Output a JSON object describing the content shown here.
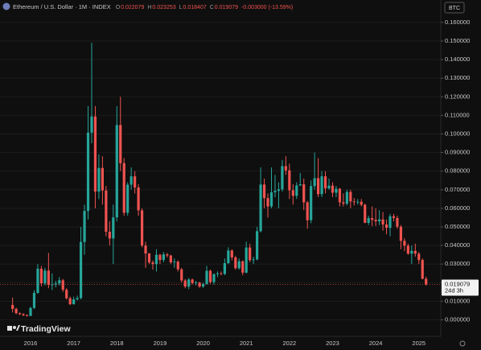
{
  "chart_data": {
    "type": "candlestick",
    "symbol": "Ethereum / U.S. Dollar · 1M · INDEX",
    "ohlc_header": [
      {
        "label": "O",
        "value": "0.022079"
      },
      {
        "label": "H",
        "value": "0.023253"
      },
      {
        "label": "L",
        "value": "0.018407"
      },
      {
        "label": "C",
        "value": "0.019079"
      }
    ],
    "change": "-0.003000 (-13.59%)",
    "currency_button": "BTC",
    "watermark": "TradingView",
    "last_price_label": "0.019079",
    "countdown": "24d 3h",
    "up_color": "#26a69a",
    "down_color": "#ef5350",
    "categories": [
      null,
      null,
      null,
      null,
      null,
      "2016",
      null,
      null,
      null,
      null,
      null,
      null,
      null,
      null,
      null,
      null,
      null,
      "2017",
      null,
      null,
      null,
      null,
      null,
      null,
      null,
      null,
      null,
      null,
      null,
      "2018",
      null,
      null,
      null,
      null,
      null,
      null,
      null,
      null,
      null,
      null,
      null,
      "2019",
      null,
      null,
      null,
      null,
      null,
      null,
      null,
      null,
      null,
      null,
      null,
      "2020",
      null,
      null,
      null,
      null,
      null,
      null,
      null,
      null,
      null,
      null,
      null,
      "2021",
      null,
      null,
      null,
      null,
      null,
      null,
      null,
      null,
      null,
      null,
      null,
      "2022",
      null,
      null,
      null,
      null,
      null,
      null,
      null,
      null,
      null,
      null,
      null,
      "2023",
      null,
      null,
      null,
      null,
      null,
      null,
      null,
      null,
      null,
      null,
      null,
      "2024",
      null,
      null,
      null,
      null,
      null,
      null,
      null,
      null,
      null,
      null,
      null,
      "2025",
      null,
      null
    ],
    "open": [
      0.008,
      0.0059,
      0.0036,
      0.0031,
      0.0025,
      0.0021,
      0.0064,
      0.0145,
      0.0275,
      0.0196,
      0.0265,
      0.0188,
      0.019,
      0.0196,
      0.0213,
      0.0162,
      0.0116,
      0.0084,
      0.011,
      0.0117,
      0.0419,
      0.0586,
      0.1007,
      0.1094,
      0.069,
      0.0817,
      0.0696,
      0.0474,
      0.0438,
      0.0551,
      0.1048,
      0.0843,
      0.0576,
      0.0727,
      0.0772,
      0.0712,
      0.0589,
      0.04,
      0.0357,
      0.0309,
      0.03,
      0.035,
      0.0322,
      0.0352,
      0.0346,
      0.0309,
      0.0313,
      0.0272,
      0.0212,
      0.0179,
      0.0217,
      0.0198,
      0.02,
      0.0179,
      0.0193,
      0.0264,
      0.0203,
      0.0246,
      0.025,
      0.0247,
      0.0305,
      0.0373,
      0.0336,
      0.0278,
      0.0315,
      0.0254,
      0.0389,
      0.0321,
      0.0325,
      0.0477,
      0.0728,
      0.0655,
      0.061,
      0.0686,
      0.0694,
      0.0702,
      0.0827,
      0.0804,
      0.0697,
      0.0667,
      0.0723,
      0.0729,
      0.0632,
      0.0536,
      0.072,
      0.0762,
      0.0676,
      0.0772,
      0.0707,
      0.0722,
      0.0684,
      0.0705,
      0.0632,
      0.0625,
      0.0688,
      0.0637,
      0.0633,
      0.0635,
      0.0619,
      0.0522,
      0.0547,
      0.0538,
      0.053,
      0.054,
      0.0513,
      0.0495,
      0.0557,
      0.0548,
      0.0501,
      0.0425,
      0.0399,
      0.0356,
      0.0371,
      0.0356,
      0.0322,
      0.022079
    ],
    "high": [
      0.012,
      0.0065,
      0.004,
      0.0036,
      0.003,
      0.007,
      0.016,
      0.03,
      0.029,
      0.028,
      0.036,
      0.025,
      0.021,
      0.023,
      0.022,
      0.017,
      0.0125,
      0.0125,
      0.013,
      0.05,
      0.062,
      0.115,
      0.149,
      0.115,
      0.089,
      0.088,
      0.072,
      0.053,
      0.062,
      0.115,
      0.12,
      0.087,
      0.074,
      0.082,
      0.08,
      0.073,
      0.06,
      0.042,
      0.036,
      0.032,
      0.038,
      0.0355,
      0.0365,
      0.036,
      0.035,
      0.033,
      0.032,
      0.028,
      0.022,
      0.0225,
      0.0222,
      0.021,
      0.0205,
      0.02,
      0.029,
      0.027,
      0.025,
      0.026,
      0.026,
      0.033,
      0.039,
      0.038,
      0.0345,
      0.033,
      0.032,
      0.042,
      0.041,
      0.034,
      0.05,
      0.082,
      0.076,
      0.068,
      0.082,
      0.078,
      0.074,
      0.086,
      0.088,
      0.084,
      0.073,
      0.074,
      0.079,
      0.076,
      0.064,
      0.075,
      0.09,
      0.087,
      0.08,
      0.08,
      0.076,
      0.074,
      0.072,
      0.071,
      0.068,
      0.07,
      0.07,
      0.0655,
      0.065,
      0.065,
      0.0625,
      0.056,
      0.061,
      0.06,
      0.059,
      0.058,
      0.054,
      0.057,
      0.057,
      0.056,
      0.051,
      0.044,
      0.041,
      0.04,
      0.041,
      0.0365,
      0.033,
      0.023253
    ],
    "low": [
      0.004,
      0.003,
      0.0025,
      0.002,
      0.0018,
      0.002,
      0.0058,
      0.014,
      0.018,
      0.0185,
      0.017,
      0.016,
      0.0175,
      0.0185,
      0.015,
      0.011,
      0.008,
      0.0082,
      0.0105,
      0.011,
      0.035,
      0.054,
      0.095,
      0.06,
      0.065,
      0.062,
      0.045,
      0.04,
      0.03,
      0.053,
      0.08,
      0.056,
      0.056,
      0.07,
      0.068,
      0.056,
      0.039,
      0.028,
      0.03,
      0.027,
      0.026,
      0.03,
      0.031,
      0.0335,
      0.03,
      0.028,
      0.026,
      0.02,
      0.017,
      0.0165,
      0.019,
      0.0185,
      0.0172,
      0.0172,
      0.019,
      0.0195,
      0.019,
      0.023,
      0.024,
      0.024,
      0.03,
      0.032,
      0.027,
      0.027,
      0.024,
      0.025,
      0.031,
      0.03,
      0.032,
      0.047,
      0.06,
      0.055,
      0.06,
      0.066,
      0.06,
      0.069,
      0.078,
      0.065,
      0.062,
      0.065,
      0.072,
      0.059,
      0.049,
      0.052,
      0.07,
      0.066,
      0.066,
      0.068,
      0.07,
      0.066,
      0.066,
      0.061,
      0.061,
      0.0615,
      0.06,
      0.0615,
      0.062,
      0.061,
      0.052,
      0.051,
      0.0505,
      0.0505,
      0.051,
      0.048,
      0.046,
      0.045,
      0.053,
      0.049,
      0.038,
      0.037,
      0.035,
      0.03,
      0.034,
      0.03,
      0.0218,
      0.018407
    ],
    "close": [
      0.0059,
      0.0036,
      0.0031,
      0.0025,
      0.0021,
      0.0064,
      0.0145,
      0.0275,
      0.0196,
      0.0265,
      0.0188,
      0.019,
      0.0196,
      0.0213,
      0.0162,
      0.0116,
      0.0084,
      0.011,
      0.0117,
      0.0419,
      0.0586,
      0.1007,
      0.1094,
      0.069,
      0.0817,
      0.0696,
      0.0474,
      0.0438,
      0.0551,
      0.1048,
      0.0843,
      0.0576,
      0.0727,
      0.0772,
      0.0712,
      0.0589,
      0.04,
      0.0357,
      0.0309,
      0.03,
      0.035,
      0.0322,
      0.0352,
      0.0346,
      0.0309,
      0.0313,
      0.0272,
      0.0212,
      0.0179,
      0.0217,
      0.0198,
      0.02,
      0.0179,
      0.0193,
      0.0264,
      0.0203,
      0.0246,
      0.025,
      0.0247,
      0.0305,
      0.0373,
      0.0336,
      0.0278,
      0.0315,
      0.0254,
      0.0389,
      0.0321,
      0.0325,
      0.0477,
      0.0728,
      0.0655,
      0.061,
      0.0686,
      0.0694,
      0.0702,
      0.0827,
      0.0804,
      0.0697,
      0.0667,
      0.0723,
      0.0729,
      0.0632,
      0.0536,
      0.072,
      0.0762,
      0.0676,
      0.0772,
      0.0707,
      0.0722,
      0.0684,
      0.0705,
      0.0632,
      0.0625,
      0.0688,
      0.0637,
      0.0633,
      0.0635,
      0.0619,
      0.0522,
      0.0547,
      0.0538,
      0.053,
      0.054,
      0.0513,
      0.0495,
      0.0557,
      0.0548,
      0.0501,
      0.0425,
      0.0399,
      0.0356,
      0.0371,
      0.0356,
      0.0322,
      0.022079,
      0.019079
    ],
    "ylim": [
      -0.008,
      0.166
    ],
    "yticks": [
      {
        "value": 0,
        "label": "0.000000"
      },
      {
        "value": 0.01,
        "label": "0.010000"
      },
      {
        "value": 0.02,
        "label": "0.020000"
      },
      {
        "value": 0.03,
        "label": "0.030000"
      },
      {
        "value": 0.04,
        "label": "0.040000"
      },
      {
        "value": 0.05,
        "label": "0.050000"
      },
      {
        "value": 0.06,
        "label": "0.060000"
      },
      {
        "value": 0.07,
        "label": "0.070000"
      },
      {
        "value": 0.08,
        "label": "0.080000"
      },
      {
        "value": 0.09,
        "label": "0.090000"
      },
      {
        "value": 0.1,
        "label": "0.100000"
      },
      {
        "value": 0.11,
        "label": "0.110000"
      },
      {
        "value": 0.12,
        "label": "0.120000"
      },
      {
        "value": 0.13,
        "label": "0.130000"
      },
      {
        "value": 0.14,
        "label": "0.140000"
      },
      {
        "value": 0.15,
        "label": "0.150000"
      },
      {
        "value": 0.16,
        "label": "0.160000"
      }
    ],
    "grid": true
  }
}
